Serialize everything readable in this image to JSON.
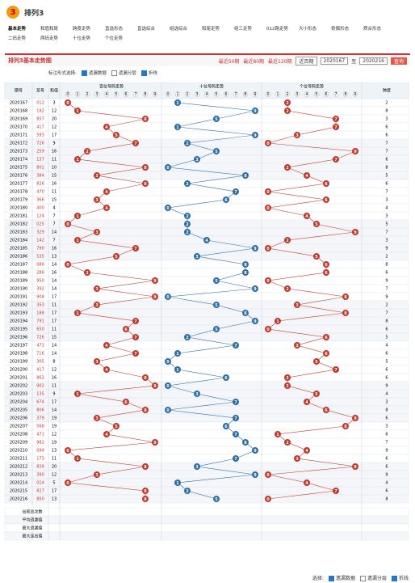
{
  "header": {
    "logo": "3",
    "title": "排列3"
  },
  "nav": [
    "基本走势",
    "和值和尾",
    "跨度走势",
    "直选形态",
    "直选综合",
    "组选综合",
    "和尾走势",
    "组三走势",
    "012路走势",
    "大小形态",
    "奇偶形态",
    "质合形态",
    "二码走势",
    "两码走势",
    "十位走势",
    "个位走势"
  ],
  "toolbar": {
    "title": "排列3基本走势图",
    "ranges": [
      "最近50期",
      "最近80期",
      "最近120期"
    ],
    "select": "近百期",
    "from": "2020167",
    "to_label": "至",
    "to": "2020216",
    "button": "查询"
  },
  "options": {
    "label": "标注形式选择:",
    "items": [
      "遗漏数据",
      "遗漏分层",
      "折线"
    ]
  },
  "table": {
    "columns": [
      "期号",
      "奖号",
      "和值"
    ],
    "groups": [
      "百位号码走势",
      "十位号码走势",
      "个位号码走势",
      "跨度"
    ],
    "digits": [
      "0",
      "1",
      "2",
      "3",
      "4",
      "5",
      "6",
      "7",
      "8",
      "9"
    ],
    "rows": [
      [
        "2020167",
        "012",
        3,
        2
      ],
      [
        "2020168",
        "192",
        12,
        8
      ],
      [
        "2020169",
        "857",
        20,
        3
      ],
      [
        "2020170",
        "417",
        12,
        6
      ],
      [
        "2020171",
        "593",
        17,
        6
      ],
      [
        "2020172",
        "720",
        9,
        7
      ],
      [
        "2020173",
        "259",
        16,
        7
      ],
      [
        "2020174",
        "137",
        11,
        6
      ],
      [
        "2020175",
        "802",
        10,
        8
      ],
      [
        "2020176",
        "384",
        15,
        5
      ],
      [
        "2020177",
        "826",
        16,
        6
      ],
      [
        "2020178",
        "470",
        11,
        7
      ],
      [
        "2020179",
        "366",
        15,
        3
      ],
      [
        "2020180",
        "400",
        4,
        4
      ],
      [
        "2020181",
        "124",
        7,
        3
      ],
      [
        "2020182",
        "025",
        7,
        5
      ],
      [
        "2020183",
        "329",
        14,
        7
      ],
      [
        "2020184",
        "142",
        7,
        3
      ],
      [
        "2020185",
        "790",
        16,
        9
      ],
      [
        "2020186",
        "535",
        13,
        2
      ],
      [
        "2020187",
        "086",
        14,
        8
      ],
      [
        "2020188",
        "286",
        16,
        6
      ],
      [
        "2020189",
        "950",
        14,
        9
      ],
      [
        "2020190",
        "392",
        14,
        7
      ],
      [
        "2020191",
        "908",
        17,
        9
      ],
      [
        "2020192",
        "353",
        11,
        2
      ],
      [
        "2020193",
        "188",
        17,
        7
      ],
      [
        "2020194",
        "791",
        17,
        8
      ],
      [
        "2020195",
        "650",
        11,
        6
      ],
      [
        "2020196",
        "726",
        15,
        5
      ],
      [
        "2020197",
        "473",
        14,
        4
      ],
      [
        "2020198",
        "716",
        14,
        6
      ],
      [
        "2020199",
        "305",
        8,
        5
      ],
      [
        "2020200",
        "417",
        12,
        6
      ],
      [
        "2020201",
        "862",
        16,
        6
      ],
      [
        "2020202",
        "902",
        11,
        9
      ],
      [
        "2020203",
        "135",
        9,
        4
      ],
      [
        "2020204",
        "674",
        17,
        3
      ],
      [
        "2020205",
        "806",
        14,
        8
      ],
      [
        "2020206",
        "379",
        19,
        6
      ],
      [
        "2020207",
        "568",
        19,
        3
      ],
      [
        "2020208",
        "471",
        12,
        6
      ],
      [
        "2020209",
        "982",
        19,
        7
      ],
      [
        "2020210",
        "094",
        13,
        9
      ],
      [
        "2020211",
        "173",
        11,
        6
      ],
      [
        "2020212",
        "839",
        20,
        6
      ],
      [
        "2020213",
        "390",
        12,
        9
      ],
      [
        "2020214",
        "014",
        5,
        4
      ],
      [
        "2020215",
        "827",
        17,
        6
      ],
      [
        "2020216",
        "850",
        13,
        8
      ]
    ]
  },
  "stats": [
    "出现总次数",
    "平均遗漏值",
    "最大遗漏值",
    "最大连出值"
  ],
  "footer": {
    "label": "选择:",
    "items": [
      "遗漏数据",
      "遗漏分层",
      "折线"
    ]
  }
}
